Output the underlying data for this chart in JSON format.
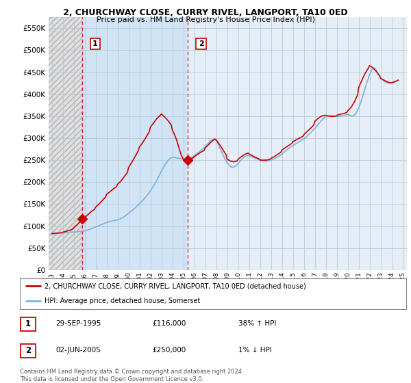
{
  "title_line1": "2, CHURCHWAY CLOSE, CURRY RIVEL, LANGPORT, TA10 0ED",
  "title_line2": "Price paid vs. HM Land Registry's House Price Index (HPI)",
  "ylabel_ticks": [
    "£0",
    "£50K",
    "£100K",
    "£150K",
    "£200K",
    "£250K",
    "£300K",
    "£350K",
    "£400K",
    "£450K",
    "£500K",
    "£550K"
  ],
  "ytick_values": [
    0,
    50000,
    100000,
    150000,
    200000,
    250000,
    300000,
    350000,
    400000,
    450000,
    500000,
    550000
  ],
  "ylim": [
    0,
    575000
  ],
  "xmin": 1992.7,
  "xmax": 2025.4,
  "sale1_x": 1995.75,
  "sale1_y": 116000,
  "sale1_label": "1",
  "sale2_x": 2005.42,
  "sale2_y": 250000,
  "sale2_label": "2",
  "sale1_vline_x": 1995.75,
  "sale2_vline_x": 2005.42,
  "hpi_color": "#7ab0e0",
  "price_color": "#CC0000",
  "vline_color": "#CC0000",
  "label_border_color": "#CC0000",
  "grid_color": "#c8d8e8",
  "hatch_bg_color": "#d8d8d8",
  "between_sales_color": "#d8e8f5",
  "after_sales_color": "#e8f0f8",
  "legend_label1": "2, CHURCHWAY CLOSE, CURRY RIVEL, LANGPORT, TA10 0ED (detached house)",
  "legend_label2": "HPI: Average price, detached house, Somerset",
  "table_row1": [
    "1",
    "29-SEP-1995",
    "£116,000",
    "38% ↑ HPI"
  ],
  "table_row2": [
    "2",
    "02-JUN-2005",
    "£250,000",
    "1% ↓ HPI"
  ],
  "copyright_text": "Contains HM Land Registry data © Crown copyright and database right 2024.\nThis data is licensed under the Open Government Licence v3.0.",
  "xtick_years": [
    1993,
    1994,
    1995,
    1996,
    1997,
    1998,
    1999,
    2000,
    2001,
    2002,
    2003,
    2004,
    2005,
    2006,
    2007,
    2008,
    2009,
    2010,
    2011,
    2012,
    2013,
    2014,
    2015,
    2016,
    2017,
    2018,
    2019,
    2020,
    2021,
    2022,
    2023,
    2024,
    2025
  ]
}
